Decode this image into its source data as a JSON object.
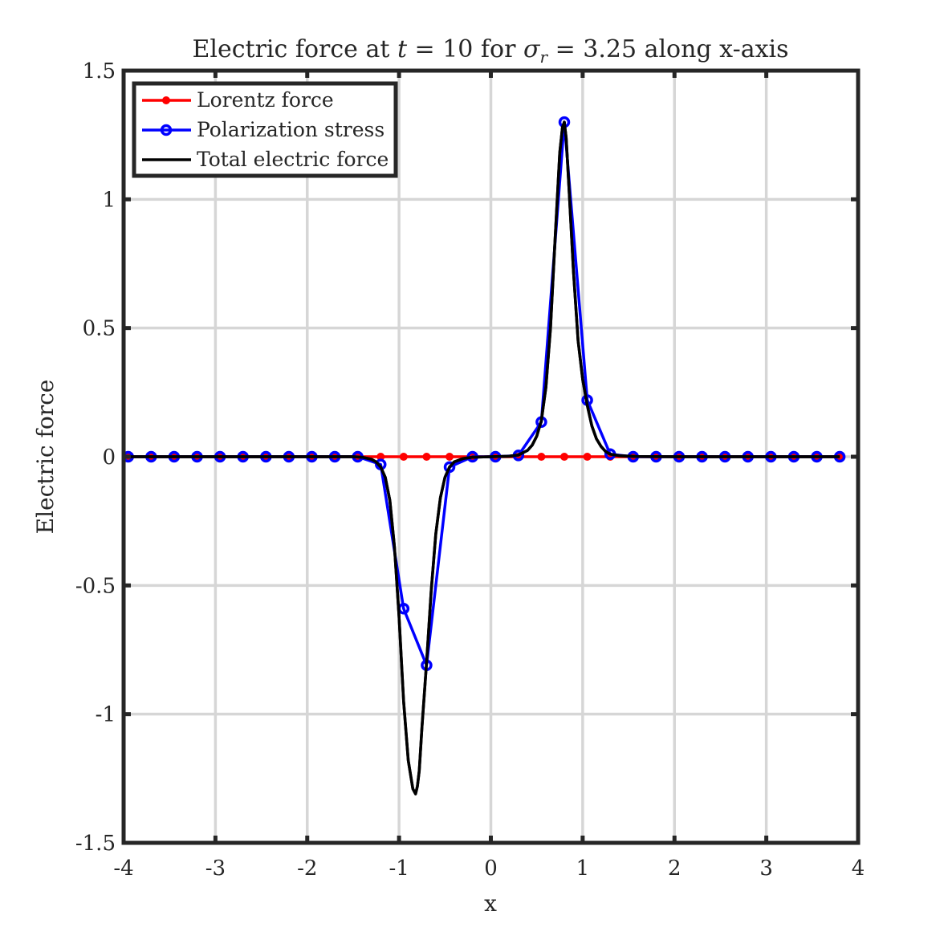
{
  "chart_data": {
    "type": "line",
    "title": "Electric force at t = 10 for σ_r = 3.25 along x-axis",
    "title_parts": {
      "prefix": "Electric force at ",
      "t_symbol": "t",
      "t_value": " = 10 for ",
      "sigma_symbol": "σ",
      "sigma_sub": "r",
      "sigma_value": " = 3.25 along x-axis"
    },
    "xlabel": "x",
    "ylabel": "Electric force",
    "xlim": [
      -4,
      4
    ],
    "ylim": [
      -1.5,
      1.5
    ],
    "xticks": [
      -4,
      -3,
      -2,
      -1,
      0,
      1,
      2,
      3,
      4
    ],
    "yticks": [
      -1.5,
      -1,
      -0.5,
      0,
      0.5,
      1,
      1.5
    ],
    "xtick_labels": [
      "-4",
      "-3",
      "-2",
      "-1",
      "0",
      "1",
      "2",
      "3",
      "4"
    ],
    "ytick_labels": [
      "-1.5",
      "-1",
      "-0.5",
      "0",
      "0.5",
      "1",
      "1.5"
    ],
    "grid": true,
    "legend_position": "top-left",
    "series": [
      {
        "name": "Lorentz force",
        "color": "#ff0000",
        "marker": "filled-dot",
        "x": [
          -3.95,
          -3.7,
          -3.45,
          -3.2,
          -2.95,
          -2.7,
          -2.45,
          -2.2,
          -1.95,
          -1.7,
          -1.45,
          -1.2,
          -0.95,
          -0.7,
          -0.45,
          -0.2,
          0.05,
          0.3,
          0.55,
          0.8,
          1.05,
          1.3,
          1.55,
          1.8,
          2.05,
          2.3,
          2.55,
          2.8,
          3.05,
          3.3,
          3.55,
          3.8
        ],
        "y": [
          0,
          0,
          0,
          0,
          0,
          0,
          0,
          0,
          0,
          0,
          0,
          0,
          0,
          0,
          0,
          0,
          0,
          0,
          0,
          0,
          0,
          0,
          0,
          0,
          0,
          0,
          0,
          0,
          0,
          0,
          0,
          0
        ]
      },
      {
        "name": "Polarization stress",
        "color": "#0000ff",
        "marker": "open-circle",
        "x": [
          -3.95,
          -3.7,
          -3.45,
          -3.2,
          -2.95,
          -2.7,
          -2.45,
          -2.2,
          -1.95,
          -1.7,
          -1.45,
          -1.2,
          -0.95,
          -0.7,
          -0.45,
          -0.2,
          0.05,
          0.3,
          0.55,
          0.8,
          1.05,
          1.3,
          1.55,
          1.8,
          2.05,
          2.3,
          2.55,
          2.8,
          3.05,
          3.3,
          3.55,
          3.8
        ],
        "y": [
          0,
          0,
          0,
          0,
          0,
          0,
          0,
          0,
          0,
          0,
          0,
          -0.03,
          -0.59,
          -0.81,
          -0.04,
          0,
          0,
          0.005,
          0.135,
          1.3,
          0.22,
          0.01,
          0,
          0,
          0,
          0,
          0,
          0,
          0,
          0,
          0,
          0
        ]
      },
      {
        "name": "Total electric force",
        "color": "#000000",
        "marker": "none",
        "x": [
          -3.95,
          -3.0,
          -2.0,
          -1.5,
          -1.4,
          -1.3,
          -1.25,
          -1.2,
          -1.15,
          -1.1,
          -1.05,
          -1.0,
          -0.95,
          -0.9,
          -0.85,
          -0.82,
          -0.8,
          -0.78,
          -0.75,
          -0.7,
          -0.65,
          -0.6,
          -0.55,
          -0.5,
          -0.45,
          -0.4,
          -0.3,
          -0.2,
          0.0,
          0.2,
          0.3,
          0.4,
          0.45,
          0.5,
          0.55,
          0.6,
          0.65,
          0.7,
          0.75,
          0.78,
          0.8,
          0.82,
          0.85,
          0.9,
          0.95,
          1.0,
          1.05,
          1.1,
          1.15,
          1.2,
          1.25,
          1.3,
          1.4,
          1.6,
          2.0,
          3.0,
          3.8
        ],
        "y": [
          0,
          0,
          0,
          0,
          -0.002,
          -0.01,
          -0.02,
          -0.04,
          -0.08,
          -0.17,
          -0.35,
          -0.62,
          -0.95,
          -1.18,
          -1.29,
          -1.31,
          -1.28,
          -1.22,
          -1.05,
          -0.8,
          -0.52,
          -0.3,
          -0.16,
          -0.08,
          -0.04,
          -0.02,
          -0.007,
          -0.002,
          0,
          0.002,
          0.007,
          0.025,
          0.045,
          0.08,
          0.14,
          0.27,
          0.5,
          0.85,
          1.18,
          1.28,
          1.3,
          1.24,
          1.05,
          0.72,
          0.45,
          0.3,
          0.2,
          0.12,
          0.07,
          0.04,
          0.02,
          0.01,
          0.004,
          0.001,
          0,
          0,
          0
        ]
      }
    ]
  }
}
